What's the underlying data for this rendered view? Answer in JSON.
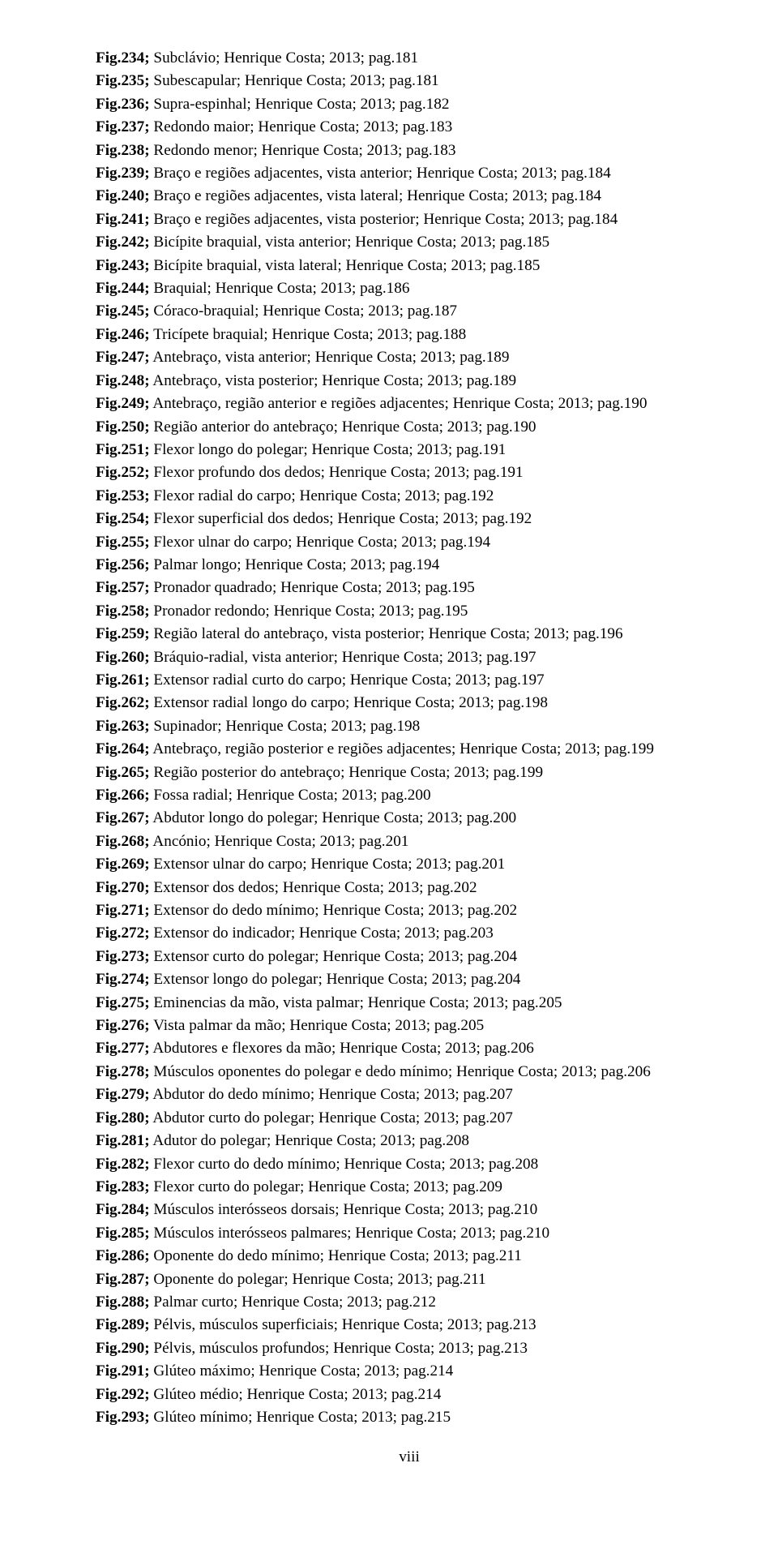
{
  "footer": "viii",
  "fontSizePx": 19.2,
  "entries": [
    {
      "fig": "Fig.234;",
      "desc": " Subclávio; Henrique Costa; 2013; pag.181"
    },
    {
      "fig": "Fig.235;",
      "desc": " Subescapular; Henrique Costa; 2013; pag.181"
    },
    {
      "fig": "Fig.236;",
      "desc": " Supra-espinhal; Henrique Costa; 2013; pag.182"
    },
    {
      "fig": "Fig.237;",
      "desc": " Redondo maior; Henrique Costa; 2013; pag.183"
    },
    {
      "fig": "Fig.238;",
      "desc": " Redondo menor; Henrique Costa; 2013; pag.183"
    },
    {
      "fig": "Fig.239;",
      "desc": " Braço e regiões adjacentes, vista anterior; Henrique Costa; 2013; pag.184"
    },
    {
      "fig": "Fig.240;",
      "desc": " Braço e regiões adjacentes, vista lateral; Henrique Costa; 2013; pag.184"
    },
    {
      "fig": "Fig.241;",
      "desc": " Braço e regiões adjacentes, vista posterior; Henrique Costa; 2013; pag.184"
    },
    {
      "fig": "Fig.242;",
      "desc": " Bicípite braquial, vista anterior; Henrique Costa; 2013; pag.185"
    },
    {
      "fig": "Fig.243;",
      "desc": " Bicípite braquial, vista lateral; Henrique Costa; 2013; pag.185"
    },
    {
      "fig": "Fig.244;",
      "desc": " Braquial; Henrique Costa; 2013; pag.186"
    },
    {
      "fig": "Fig.245;",
      "desc": " Córaco-braquial; Henrique Costa; 2013; pag.187"
    },
    {
      "fig": "Fig.246;",
      "desc": " Tricípete braquial; Henrique Costa; 2013; pag.188"
    },
    {
      "fig": "Fig.247;",
      "desc": " Antebraço, vista anterior; Henrique Costa; 2013; pag.189"
    },
    {
      "fig": "Fig.248;",
      "desc": " Antebraço, vista posterior; Henrique Costa; 2013; pag.189"
    },
    {
      "fig": "Fig.249;",
      "desc": " Antebraço, região anterior e regiões adjacentes; Henrique Costa; 2013; pag.190"
    },
    {
      "fig": "Fig.250;",
      "desc": " Região anterior do antebraço; Henrique Costa; 2013; pag.190"
    },
    {
      "fig": "Fig.251;",
      "desc": " Flexor longo do polegar; Henrique Costa; 2013; pag.191"
    },
    {
      "fig": "Fig.252;",
      "desc": " Flexor profundo dos dedos; Henrique Costa; 2013; pag.191"
    },
    {
      "fig": "Fig.253;",
      "desc": " Flexor radial do carpo; Henrique Costa; 2013; pag.192"
    },
    {
      "fig": "Fig.254;",
      "desc": " Flexor superficial dos dedos; Henrique Costa; 2013; pag.192"
    },
    {
      "fig": "Fig.255;",
      "desc": " Flexor ulnar do carpo; Henrique Costa; 2013; pag.194"
    },
    {
      "fig": "Fig.256;",
      "desc": " Palmar longo; Henrique Costa; 2013; pag.194"
    },
    {
      "fig": "Fig.257;",
      "desc": " Pronador quadrado; Henrique Costa; 2013; pag.195"
    },
    {
      "fig": "Fig.258;",
      "desc": " Pronador redondo; Henrique Costa; 2013; pag.195"
    },
    {
      "fig": "Fig.259;",
      "desc": " Região lateral do antebraço, vista posterior; Henrique Costa; 2013; pag.196"
    },
    {
      "fig": "Fig.260;",
      "desc": " Bráquio-radial, vista anterior; Henrique Costa; 2013; pag.197"
    },
    {
      "fig": "Fig.261;",
      "desc": " Extensor radial curto do carpo; Henrique Costa; 2013; pag.197"
    },
    {
      "fig": "Fig.262;",
      "desc": " Extensor radial longo do carpo; Henrique Costa; 2013; pag.198"
    },
    {
      "fig": "Fig.263;",
      "desc": " Supinador; Henrique Costa; 2013; pag.198"
    },
    {
      "fig": "Fig.264;",
      "desc": " Antebraço, região posterior e regiões adjacentes; Henrique Costa; 2013; pag.199"
    },
    {
      "fig": "Fig.265;",
      "desc": " Região posterior do antebraço; Henrique Costa; 2013; pag.199"
    },
    {
      "fig": "Fig.266;",
      "desc": " Fossa radial; Henrique Costa; 2013; pag.200"
    },
    {
      "fig": "Fig.267;",
      "desc": " Abdutor longo do polegar; Henrique Costa; 2013; pag.200"
    },
    {
      "fig": "Fig.268;",
      "desc": " Ancónio; Henrique Costa; 2013; pag.201"
    },
    {
      "fig": "Fig.269;",
      "desc": " Extensor ulnar do carpo; Henrique Costa; 2013; pag.201"
    },
    {
      "fig": "Fig.270;",
      "desc": " Extensor dos dedos; Henrique Costa; 2013; pag.202"
    },
    {
      "fig": "Fig.271;",
      "desc": " Extensor do dedo mínimo; Henrique Costa; 2013; pag.202"
    },
    {
      "fig": "Fig.272;",
      "desc": " Extensor do indicador; Henrique Costa; 2013; pag.203"
    },
    {
      "fig": "Fig.273;",
      "desc": " Extensor curto do polegar; Henrique Costa; 2013; pag.204"
    },
    {
      "fig": "Fig.274;",
      "desc": " Extensor longo do polegar; Henrique Costa; 2013; pag.204"
    },
    {
      "fig": "Fig.275;",
      "desc": " Eminencias da mão, vista palmar; Henrique Costa; 2013; pag.205"
    },
    {
      "fig": "Fig.276;",
      "desc": " Vista palmar da mão; Henrique Costa; 2013; pag.205"
    },
    {
      "fig": "Fig.277;",
      "desc": " Abdutores e flexores da mão; Henrique Costa; 2013; pag.206"
    },
    {
      "fig": "Fig.278;",
      "desc": " Músculos oponentes do polegar e dedo mínimo; Henrique Costa; 2013; pag.206"
    },
    {
      "fig": "Fig.279;",
      "desc": " Abdutor do dedo mínimo; Henrique Costa; 2013; pag.207"
    },
    {
      "fig": "Fig.280;",
      "desc": " Abdutor curto do polegar; Henrique Costa; 2013; pag.207"
    },
    {
      "fig": "Fig.281;",
      "desc": " Adutor do polegar; Henrique Costa; 2013; pag.208"
    },
    {
      "fig": "Fig.282;",
      "desc": " Flexor curto do dedo mínimo; Henrique Costa; 2013; pag.208"
    },
    {
      "fig": "Fig.283;",
      "desc": " Flexor curto do polegar; Henrique Costa; 2013; pag.209"
    },
    {
      "fig": "Fig.284;",
      "desc": " Músculos interósseos dorsais; Henrique Costa; 2013; pag.210"
    },
    {
      "fig": "Fig.285;",
      "desc": " Músculos interósseos palmares; Henrique Costa; 2013; pag.210"
    },
    {
      "fig": "Fig.286;",
      "desc": " Oponente do dedo mínimo; Henrique Costa; 2013; pag.211"
    },
    {
      "fig": "Fig.287;",
      "desc": " Oponente do polegar; Henrique Costa; 2013; pag.211"
    },
    {
      "fig": "Fig.288;",
      "desc": " Palmar curto; Henrique Costa; 2013; pag.212"
    },
    {
      "fig": "Fig.289;",
      "desc": " Pélvis, músculos superficiais; Henrique Costa; 2013; pag.213"
    },
    {
      "fig": "Fig.290;",
      "desc": " Pélvis, músculos profundos; Henrique Costa; 2013; pag.213"
    },
    {
      "fig": "Fig.291;",
      "desc": " Glúteo máximo; Henrique Costa; 2013; pag.214"
    },
    {
      "fig": "Fig.292;",
      "desc": " Glúteo médio; Henrique Costa; 2013; pag.214"
    },
    {
      "fig": "Fig.293;",
      "desc": " Glúteo mínimo; Henrique Costa; 2013; pag.215"
    }
  ]
}
